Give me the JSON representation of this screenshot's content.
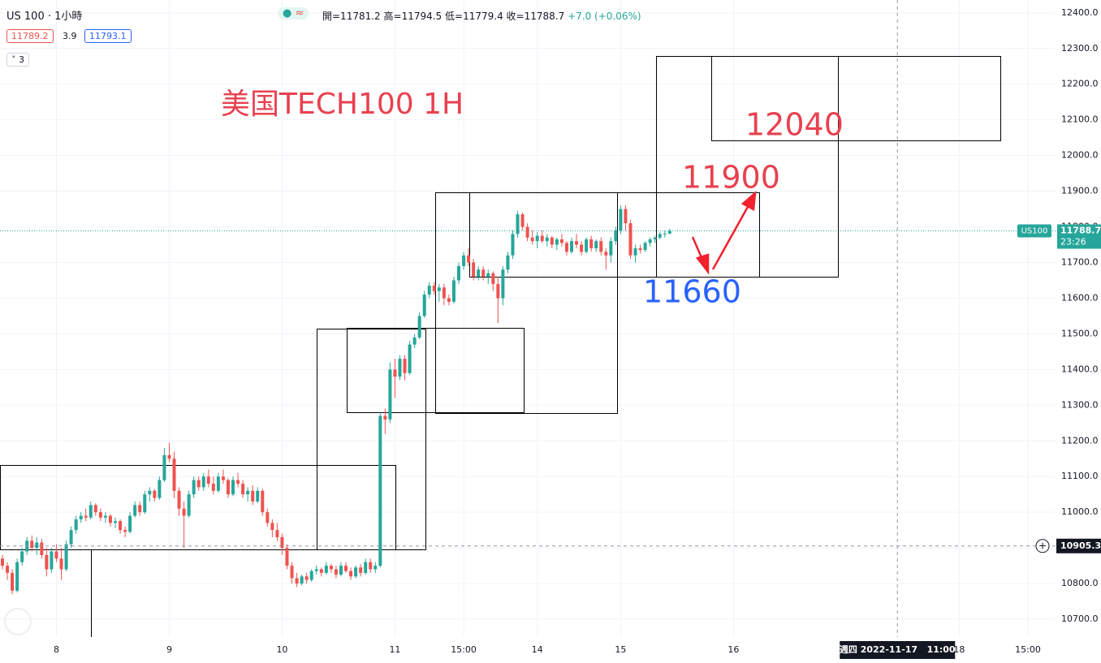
{
  "header": {
    "symbol": "US 100 · 1小時",
    "legend": [
      "開=11781.2",
      "高=11794.5",
      "低=11779.4",
      "收=11788.7",
      "+7.0 (+0.06%)"
    ],
    "bid": "11789.2",
    "spread": "3.9",
    "ask": "11793.1",
    "indicators": "3"
  },
  "annotations": {
    "title": "美国TECH100 1H",
    "targets": [
      "12040",
      "11900",
      "11660"
    ]
  },
  "chart_data": {
    "type": "candlestick",
    "up_color": "#26a69a",
    "down_color": "#ef5350",
    "grid": true,
    "ylim": [
      10650,
      12436
    ],
    "yticks": [
      {
        "value": 12400,
        "label": "12400.0"
      },
      {
        "value": 12300,
        "label": "12300.0"
      },
      {
        "value": 12200,
        "label": "12200.0"
      },
      {
        "value": 12100,
        "label": "12100.0"
      },
      {
        "value": 12000,
        "label": "12000.0"
      },
      {
        "value": 11900,
        "label": "11900.0"
      },
      {
        "value": 11800,
        "label": "11800.0"
      },
      {
        "value": 11700,
        "label": "11700.0"
      },
      {
        "value": 11600,
        "label": "11600.0"
      },
      {
        "value": 11500,
        "label": "11500.0"
      },
      {
        "value": 11400,
        "label": "11400.0"
      },
      {
        "value": 11300,
        "label": "11300.0"
      },
      {
        "value": 11200,
        "label": "11200.0"
      },
      {
        "value": 11100,
        "label": "11100.0"
      },
      {
        "value": 11000,
        "label": "11000.0"
      },
      {
        "value": 10900,
        "label": "10900.0"
      },
      {
        "value": 10800,
        "label": "10800.0"
      },
      {
        "value": 10700,
        "label": "10700.0"
      }
    ],
    "xticks": [
      {
        "value": 11,
        "label": "8"
      },
      {
        "value": 34,
        "label": "9"
      },
      {
        "value": 57,
        "label": "10"
      },
      {
        "value": 80,
        "label": "11"
      },
      {
        "value": 94,
        "label": "15:00"
      },
      {
        "value": 109,
        "label": "14"
      },
      {
        "value": 126,
        "label": "15"
      },
      {
        "value": 149,
        "label": "16"
      },
      {
        "value": 195,
        "label": "18"
      },
      {
        "value": 209,
        "label": "15:00"
      }
    ],
    "last_price": {
      "symbol": "US100",
      "value": 11788.7,
      "countdown": "23:26"
    },
    "crosshair": {
      "x": 182.4,
      "y": 10905.3,
      "date_label": "週四 2022-11-17   11:00"
    },
    "ohlc": [
      [
        10870,
        10880,
        10840,
        10850
      ],
      [
        10850,
        10860,
        10810,
        10830
      ],
      [
        10830,
        10840,
        10770,
        10780
      ],
      [
        10780,
        10870,
        10775,
        10860
      ],
      [
        10860,
        10900,
        10850,
        10890
      ],
      [
        10890,
        10930,
        10880,
        10920
      ],
      [
        10920,
        10935,
        10890,
        10900
      ],
      [
        10900,
        10930,
        10880,
        10915
      ],
      [
        10915,
        10925,
        10870,
        10880
      ],
      [
        10880,
        10900,
        10820,
        10840
      ],
      [
        10840,
        10900,
        10830,
        10890
      ],
      [
        10890,
        10910,
        10860,
        10870
      ],
      [
        10870,
        10900,
        10810,
        10840
      ],
      [
        10840,
        10920,
        10835,
        10910
      ],
      [
        10910,
        10960,
        10900,
        10950
      ],
      [
        10950,
        10990,
        10940,
        10980
      ],
      [
        10980,
        11000,
        10970,
        10990
      ],
      [
        10990,
        11010,
        10975,
        10985
      ],
      [
        10985,
        11030,
        10980,
        11020
      ],
      [
        11020,
        11025,
        10990,
        11000
      ],
      [
        11000,
        11010,
        10975,
        10985
      ],
      [
        10985,
        11000,
        10970,
        10990
      ],
      [
        10990,
        10995,
        10960,
        10970
      ],
      [
        10970,
        10985,
        10955,
        10975
      ],
      [
        10975,
        10980,
        10940,
        10950
      ],
      [
        10950,
        10960,
        10930,
        10945
      ],
      [
        10945,
        11000,
        10940,
        10990
      ],
      [
        10990,
        11030,
        10985,
        11020
      ],
      [
        11020,
        11030,
        10990,
        11000
      ],
      [
        11000,
        11060,
        10995,
        11050
      ],
      [
        11050,
        11070,
        11030,
        11060
      ],
      [
        11060,
        11065,
        11030,
        11040
      ],
      [
        11040,
        11100,
        11035,
        11090
      ],
      [
        11090,
        11180,
        11085,
        11160
      ],
      [
        11160,
        11195,
        11140,
        11150
      ],
      [
        11150,
        11170,
        11040,
        11060
      ],
      [
        11060,
        11070,
        10990,
        11010
      ],
      [
        11010,
        11030,
        10900,
        10990
      ],
      [
        10990,
        11060,
        10985,
        11050
      ],
      [
        11050,
        11100,
        11040,
        11090
      ],
      [
        11090,
        11100,
        11060,
        11070
      ],
      [
        11070,
        11110,
        11060,
        11100
      ],
      [
        11100,
        11120,
        11070,
        11080
      ],
      [
        11080,
        11100,
        11050,
        11060
      ],
      [
        11060,
        11110,
        11055,
        11100
      ],
      [
        11100,
        11120,
        11080,
        11090
      ],
      [
        11090,
        11095,
        11040,
        11050
      ],
      [
        11050,
        11100,
        11045,
        11090
      ],
      [
        11090,
        11110,
        11070,
        11080
      ],
      [
        11080,
        11090,
        11040,
        11050
      ],
      [
        11050,
        11070,
        11030,
        11060
      ],
      [
        11060,
        11075,
        11020,
        11030
      ],
      [
        11030,
        11070,
        11025,
        11060
      ],
      [
        11060,
        11065,
        10990,
        11000
      ],
      [
        11000,
        11010,
        10960,
        10970
      ],
      [
        10970,
        10980,
        10930,
        10950
      ],
      [
        10950,
        10970,
        10920,
        10930
      ],
      [
        10930,
        10940,
        10880,
        10900
      ],
      [
        10900,
        10910,
        10840,
        10850
      ],
      [
        10850,
        10860,
        10800,
        10815
      ],
      [
        10815,
        10830,
        10790,
        10800
      ],
      [
        10800,
        10825,
        10795,
        10820
      ],
      [
        10820,
        10830,
        10800,
        10810
      ],
      [
        10810,
        10840,
        10805,
        10835
      ],
      [
        10835,
        10850,
        10825,
        10840
      ],
      [
        10840,
        10845,
        10820,
        10830
      ],
      [
        10830,
        10860,
        10825,
        10850
      ],
      [
        10850,
        10855,
        10830,
        10840
      ],
      [
        10840,
        10850,
        10815,
        10825
      ],
      [
        10825,
        10860,
        10820,
        10850
      ],
      [
        10850,
        10860,
        10830,
        10835
      ],
      [
        10835,
        10845,
        10810,
        10820
      ],
      [
        10820,
        10850,
        10815,
        10845
      ],
      [
        10845,
        10855,
        10820,
        10830
      ],
      [
        10830,
        10870,
        10825,
        10860
      ],
      [
        10860,
        10870,
        10830,
        10840
      ],
      [
        10840,
        10860,
        10830,
        10850
      ],
      [
        10850,
        11280,
        10845,
        11270
      ],
      [
        11270,
        11290,
        11220,
        11260
      ],
      [
        11260,
        11420,
        11250,
        11400
      ],
      [
        11400,
        11430,
        11320,
        11380
      ],
      [
        11380,
        11440,
        11370,
        11430
      ],
      [
        11430,
        11440,
        11370,
        11390
      ],
      [
        11390,
        11480,
        11385,
        11470
      ],
      [
        11470,
        11500,
        11460,
        11490
      ],
      [
        11490,
        11560,
        11485,
        11550
      ],
      [
        11550,
        11620,
        11545,
        11610
      ],
      [
        11610,
        11645,
        11600,
        11635
      ],
      [
        11635,
        11645,
        11610,
        11620
      ],
      [
        11620,
        11640,
        11590,
        11630
      ],
      [
        11630,
        11640,
        11580,
        11600
      ],
      [
        11600,
        11610,
        11580,
        11590
      ],
      [
        11590,
        11660,
        11585,
        11650
      ],
      [
        11650,
        11700,
        11640,
        11690
      ],
      [
        11690,
        11730,
        11680,
        11720
      ],
      [
        11720,
        11740,
        11690,
        11700
      ],
      [
        11700,
        11710,
        11650,
        11660
      ],
      [
        11660,
        11690,
        11650,
        11680
      ],
      [
        11680,
        11690,
        11650,
        11660
      ],
      [
        11660,
        11680,
        11640,
        11670
      ],
      [
        11670,
        11675,
        11620,
        11640
      ],
      [
        11640,
        11660,
        11530,
        11600
      ],
      [
        11600,
        11690,
        11580,
        11680
      ],
      [
        11680,
        11730,
        11670,
        11720
      ],
      [
        11720,
        11790,
        11710,
        11780
      ],
      [
        11780,
        11845,
        11770,
        11835
      ],
      [
        11835,
        11840,
        11790,
        11800
      ],
      [
        11800,
        11810,
        11760,
        11770
      ],
      [
        11770,
        11790,
        11750,
        11760
      ],
      [
        11760,
        11785,
        11740,
        11775
      ],
      [
        11775,
        11790,
        11755,
        11760
      ],
      [
        11760,
        11780,
        11745,
        11770
      ],
      [
        11770,
        11775,
        11740,
        11750
      ],
      [
        11750,
        11770,
        11735,
        11765
      ],
      [
        11765,
        11780,
        11745,
        11755
      ],
      [
        11755,
        11760,
        11720,
        11730
      ],
      [
        11730,
        11770,
        11725,
        11760
      ],
      [
        11760,
        11780,
        11740,
        11750
      ],
      [
        11750,
        11760,
        11720,
        11730
      ],
      [
        11730,
        11770,
        11725,
        11765
      ],
      [
        11765,
        11775,
        11730,
        11740
      ],
      [
        11740,
        11765,
        11730,
        11760
      ],
      [
        11760,
        11770,
        11720,
        11730
      ],
      [
        11730,
        11740,
        11680,
        11720
      ],
      [
        11720,
        11770,
        11700,
        11760
      ],
      [
        11760,
        11800,
        11750,
        11790
      ],
      [
        11790,
        11860,
        11780,
        11850
      ],
      [
        11850,
        11860,
        11790,
        11810
      ],
      [
        11810,
        11820,
        11710,
        11720
      ],
      [
        11720,
        11750,
        11700,
        11740
      ],
      [
        11740,
        11750,
        11725,
        11735
      ],
      [
        11735,
        11760,
        11730,
        11755
      ],
      [
        11755,
        11770,
        11745,
        11765
      ],
      [
        11765,
        11775,
        11755,
        11770
      ],
      [
        11770,
        11785,
        11765,
        11780
      ],
      [
        11780,
        11790,
        11770,
        11781.2
      ],
      [
        11781.2,
        11794.5,
        11779.4,
        11788.7
      ]
    ]
  }
}
